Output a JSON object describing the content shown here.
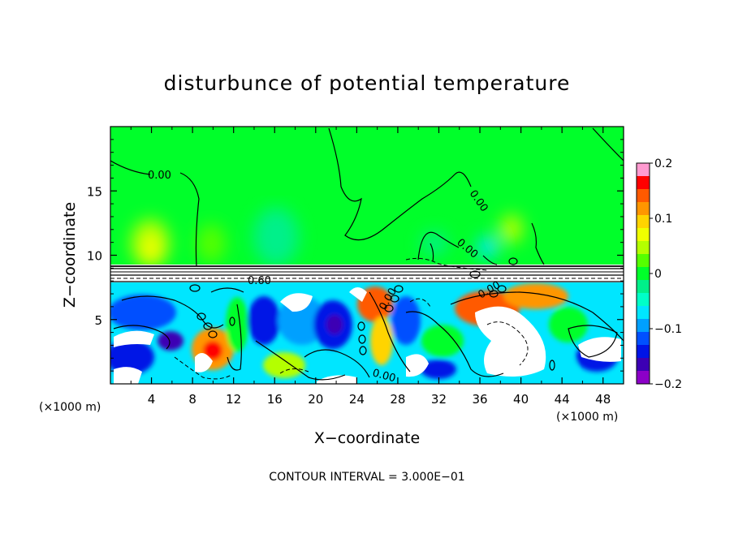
{
  "chart_data": {
    "type": "heatmap",
    "title": "disturbunce of potential temperature",
    "xlabel": "X−coordinate",
    "ylabel": "Z−coordinate",
    "x_unit_left": "(×1000 m)",
    "x_unit_right": "(×1000 m)",
    "xlim": [
      0,
      50
    ],
    "ylim": [
      0,
      20
    ],
    "x_ticks": [
      4,
      8,
      12,
      16,
      20,
      24,
      28,
      32,
      36,
      40,
      44,
      48
    ],
    "x_tick_labels": [
      "4",
      "8",
      "12",
      "16",
      "20",
      "24",
      "28",
      "32",
      "36",
      "40",
      "44",
      "48"
    ],
    "y_ticks": [
      5,
      10,
      15
    ],
    "y_tick_labels": [
      "5",
      "10",
      "15"
    ],
    "contour_interval_text": "CONTOUR INTERVAL = 3.000E−01",
    "contour_labels": [
      "0.00",
      "0.00",
      "0.00",
      "0.00",
      "0.00",
      "0.60",
      "0.00"
    ],
    "colorbar": {
      "range": [
        -0.2,
        0.2
      ],
      "tick_values": [
        0.2,
        0.1,
        0,
        -0.1,
        -0.2
      ],
      "tick_labels": [
        "0.2",
        "0.1",
        "0",
        "−0.1",
        "−0.2"
      ],
      "colors": [
        "#ff9ad0",
        "#ff0000",
        "#ff5a00",
        "#ff9600",
        "#ffd400",
        "#f0ff00",
        "#b4ff00",
        "#55ff00",
        "#00ff2a",
        "#00f08a",
        "#00ffc8",
        "#00e6ff",
        "#00a0ff",
        "#0050ff",
        "#0014e6",
        "#3c00b4",
        "#8c00c8"
      ]
    }
  }
}
